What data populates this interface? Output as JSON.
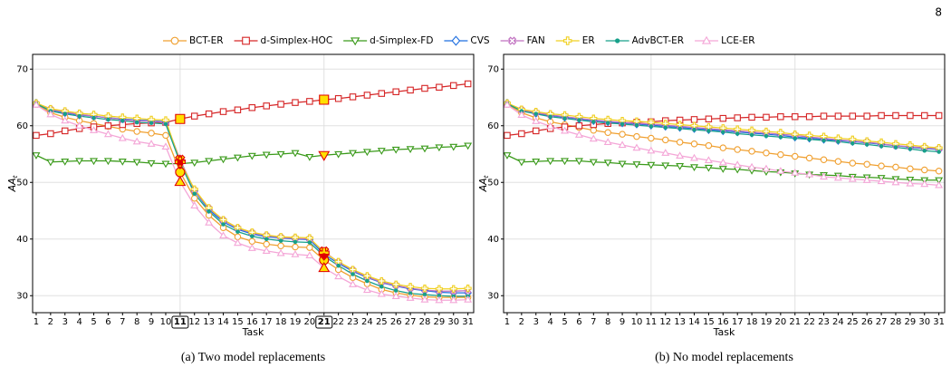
{
  "page_number": "8",
  "chart_data": [
    {
      "type": "line",
      "caption": "(a) Two model replacements",
      "xlabel": "Task",
      "ylabel": "AA",
      "ylabel_sub": "t",
      "x": [
        1,
        2,
        3,
        4,
        5,
        6,
        7,
        8,
        9,
        10,
        11,
        12,
        13,
        14,
        15,
        16,
        17,
        18,
        19,
        20,
        21,
        22,
        23,
        24,
        25,
        26,
        27,
        28,
        29,
        30,
        31
      ],
      "xlim": [
        0.75,
        31.4
      ],
      "ylim": [
        27,
        72.6
      ],
      "xticks": [
        1,
        2,
        3,
        4,
        5,
        6,
        7,
        8,
        9,
        10,
        11,
        12,
        13,
        14,
        15,
        16,
        17,
        18,
        19,
        20,
        21,
        22,
        23,
        24,
        25,
        26,
        27,
        28,
        29,
        30,
        31
      ],
      "yticks": [
        30,
        40,
        50,
        60,
        70
      ],
      "grid": true,
      "xgrid": [
        11,
        21
      ],
      "highlight_x": [
        11,
        21
      ],
      "series": [
        {
          "name": "BCT-ER",
          "color": "#f0a030",
          "marker": "o",
          "values": [
            63.8,
            62.3,
            61.5,
            60.9,
            60.4,
            59.9,
            59.4,
            59.0,
            58.7,
            58.3,
            51.8,
            47.2,
            44.2,
            42.0,
            40.4,
            39.6,
            39.1,
            38.8,
            38.6,
            38.5,
            36.3,
            34.6,
            33.2,
            32.1,
            31.1,
            30.5,
            30.1,
            29.8,
            29.7,
            29.7,
            29.7
          ]
        },
        {
          "name": "d-Simplex-HOC",
          "color": "#d62728",
          "marker": "s",
          "values": [
            58.3,
            58.6,
            59.1,
            59.5,
            59.8,
            60.0,
            60.2,
            60.4,
            60.5,
            60.6,
            61.2,
            61.7,
            62.1,
            62.5,
            62.8,
            63.2,
            63.5,
            63.8,
            64.1,
            64.3,
            64.6,
            64.8,
            65.1,
            65.4,
            65.7,
            66.0,
            66.3,
            66.6,
            66.8,
            67.1,
            67.4
          ]
        },
        {
          "name": "d-Simplex-FD",
          "color": "#3a9a1a",
          "marker": "v",
          "values": [
            54.8,
            53.6,
            53.7,
            53.8,
            53.8,
            53.8,
            53.7,
            53.6,
            53.4,
            53.3,
            53.3,
            53.5,
            53.8,
            54.1,
            54.4,
            54.7,
            54.9,
            55.0,
            55.2,
            54.5,
            54.8,
            55.0,
            55.2,
            55.4,
            55.6,
            55.8,
            55.9,
            56.0,
            56.2,
            56.3,
            56.5
          ]
        },
        {
          "name": "CVS",
          "color": "#1f6fe0",
          "marker": "D",
          "values": [
            64.0,
            62.8,
            62.3,
            61.9,
            61.7,
            61.4,
            61.2,
            61.0,
            60.9,
            60.7,
            53.8,
            48.5,
            45.2,
            43.0,
            41.7,
            40.9,
            40.4,
            40.2,
            40.0,
            39.9,
            37.3,
            35.7,
            34.3,
            33.2,
            32.3,
            31.7,
            31.2,
            30.9,
            30.6,
            30.5,
            30.5
          ]
        },
        {
          "name": "FAN",
          "color": "#c070c0",
          "marker": "X",
          "values": [
            63.8,
            62.9,
            62.4,
            62.0,
            61.7,
            61.4,
            61.1,
            60.9,
            60.8,
            60.6,
            54.0,
            48.6,
            45.4,
            43.3,
            41.9,
            41.1,
            40.6,
            40.3,
            40.1,
            40.0,
            37.8,
            35.9,
            34.5,
            33.3,
            32.4,
            31.8,
            31.3,
            31.0,
            30.8,
            30.8,
            30.9
          ]
        },
        {
          "name": "ER",
          "color": "#f0d020",
          "marker": "P",
          "values": [
            64.0,
            63.0,
            62.6,
            62.2,
            62.0,
            61.7,
            61.5,
            61.3,
            61.1,
            61.0,
            53.6,
            48.8,
            45.5,
            43.4,
            42.0,
            41.2,
            40.7,
            40.4,
            40.3,
            40.2,
            37.6,
            36.0,
            34.6,
            33.5,
            32.6,
            32.0,
            31.6,
            31.3,
            31.2,
            31.2,
            31.3
          ]
        },
        {
          "name": "AdvBCT-ER",
          "color": "#17a08a",
          "marker": ".",
          "values": [
            63.9,
            62.6,
            62.1,
            61.7,
            61.4,
            61.1,
            60.9,
            60.6,
            60.5,
            60.3,
            53.5,
            48.0,
            44.9,
            42.6,
            41.3,
            40.5,
            40.0,
            39.7,
            39.5,
            39.4,
            37.0,
            35.3,
            33.8,
            32.6,
            31.6,
            30.9,
            30.4,
            30.2,
            30.0,
            29.9,
            29.9
          ]
        },
        {
          "name": "LCE-ER",
          "color": "#f4a6d7",
          "marker": "^",
          "values": [
            63.7,
            62.0,
            60.9,
            60.0,
            59.2,
            58.5,
            57.8,
            57.2,
            56.8,
            56.3,
            50.1,
            45.9,
            42.9,
            40.6,
            39.3,
            38.4,
            37.9,
            37.5,
            37.3,
            37.1,
            34.9,
            33.4,
            32.0,
            31.0,
            30.3,
            29.9,
            29.6,
            29.3,
            29.2,
            29.2,
            29.3
          ]
        }
      ]
    },
    {
      "type": "line",
      "caption": "(b) No model replacements",
      "xlabel": "Task",
      "ylabel": "AA",
      "ylabel_sub": "t",
      "x": [
        1,
        2,
        3,
        4,
        5,
        6,
        7,
        8,
        9,
        10,
        11,
        12,
        13,
        14,
        15,
        16,
        17,
        18,
        19,
        20,
        21,
        22,
        23,
        24,
        25,
        26,
        27,
        28,
        29,
        30,
        31
      ],
      "xlim": [
        0.75,
        31.4
      ],
      "ylim": [
        27,
        72.6
      ],
      "xticks": [
        1,
        2,
        3,
        4,
        5,
        6,
        7,
        8,
        9,
        10,
        11,
        12,
        13,
        14,
        15,
        16,
        17,
        18,
        19,
        20,
        21,
        22,
        23,
        24,
        25,
        26,
        27,
        28,
        29,
        30,
        31
      ],
      "yticks": [
        30,
        40,
        50,
        60,
        70
      ],
      "grid": true,
      "xgrid": [
        11,
        21
      ],
      "series": [
        {
          "color": "#f0a030",
          "marker": "o",
          "values": [
            63.8,
            62.3,
            61.4,
            60.7,
            60.2,
            59.7,
            59.2,
            58.8,
            58.5,
            58.1,
            57.8,
            57.5,
            57.1,
            56.8,
            56.5,
            56.1,
            55.8,
            55.5,
            55.2,
            54.9,
            54.6,
            54.3,
            54.0,
            53.7,
            53.4,
            53.2,
            52.9,
            52.7,
            52.4,
            52.2,
            52.0
          ]
        },
        {
          "color": "#d62728",
          "marker": "s",
          "values": [
            58.3,
            58.6,
            59.1,
            59.5,
            59.8,
            60.0,
            60.2,
            60.4,
            60.5,
            60.6,
            60.7,
            60.9,
            61.0,
            61.1,
            61.2,
            61.3,
            61.4,
            61.5,
            61.5,
            61.6,
            61.6,
            61.6,
            61.7,
            61.7,
            61.7,
            61.7,
            61.8,
            61.8,
            61.8,
            61.8,
            61.8
          ]
        },
        {
          "color": "#3a9a1a",
          "marker": "v",
          "values": [
            54.8,
            53.6,
            53.7,
            53.8,
            53.8,
            53.8,
            53.6,
            53.5,
            53.3,
            53.2,
            53.1,
            53.0,
            52.9,
            52.7,
            52.6,
            52.4,
            52.3,
            52.1,
            51.9,
            51.8,
            51.6,
            51.4,
            51.3,
            51.2,
            51.0,
            50.9,
            50.8,
            50.6,
            50.5,
            50.4,
            50.4
          ]
        },
        {
          "color": "#1f6fe0",
          "marker": "D",
          "values": [
            64.0,
            62.7,
            62.2,
            61.8,
            61.5,
            61.2,
            60.9,
            60.7,
            60.5,
            60.3,
            60.1,
            59.9,
            59.7,
            59.5,
            59.3,
            59.1,
            58.9,
            58.7,
            58.5,
            58.3,
            58.0,
            57.8,
            57.6,
            57.4,
            57.2,
            57.0,
            56.7,
            56.5,
            56.2,
            56.0,
            55.8
          ]
        },
        {
          "color": "#c070c0",
          "marker": "X",
          "values": [
            63.8,
            62.8,
            62.3,
            61.9,
            61.6,
            61.3,
            61.0,
            60.8,
            60.6,
            60.4,
            60.3,
            60.1,
            59.9,
            59.7,
            59.5,
            59.3,
            59.1,
            58.9,
            58.7,
            58.5,
            58.3,
            58.0,
            57.8,
            57.5,
            57.3,
            57.1,
            56.8,
            56.5,
            56.3,
            56.1,
            55.9
          ]
        },
        {
          "color": "#f0d020",
          "marker": "P",
          "values": [
            64.0,
            62.9,
            62.5,
            62.1,
            61.9,
            61.6,
            61.3,
            61.1,
            60.9,
            60.8,
            60.6,
            60.4,
            60.2,
            60.0,
            59.8,
            59.6,
            59.4,
            59.2,
            59.0,
            58.8,
            58.5,
            58.3,
            58.1,
            57.8,
            57.6,
            57.3,
            57.1,
            56.8,
            56.6,
            56.3,
            56.1
          ]
        },
        {
          "color": "#17a08a",
          "marker": ".",
          "values": [
            63.9,
            62.6,
            62.1,
            61.6,
            61.3,
            61.0,
            60.7,
            60.5,
            60.3,
            60.1,
            59.9,
            59.7,
            59.5,
            59.3,
            59.1,
            58.9,
            58.6,
            58.4,
            58.2,
            58.0,
            57.8,
            57.6,
            57.4,
            57.2,
            56.9,
            56.7,
            56.4,
            56.2,
            55.9,
            55.6,
            55.4
          ]
        },
        {
          "color": "#f4a6d7",
          "marker": "^",
          "values": [
            63.7,
            61.9,
            60.8,
            59.9,
            59.1,
            58.4,
            57.7,
            57.1,
            56.6,
            56.1,
            55.6,
            55.2,
            54.7,
            54.3,
            53.9,
            53.5,
            53.1,
            52.7,
            52.4,
            52.0,
            51.7,
            51.4,
            51.0,
            50.8,
            50.6,
            50.4,
            50.2,
            50.0,
            49.8,
            49.7,
            49.5
          ]
        }
      ]
    }
  ]
}
